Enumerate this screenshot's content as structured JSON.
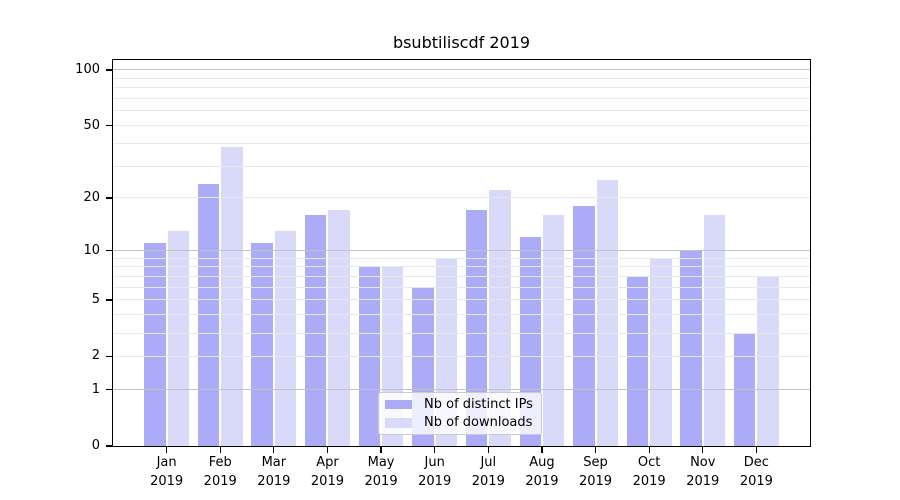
{
  "title": "bsubtiliscdf 2019",
  "chart_data": {
    "type": "bar",
    "title": "bsubtiliscdf 2019",
    "categories": [
      "Jan 2019",
      "Feb 2019",
      "Mar 2019",
      "Apr 2019",
      "May 2019",
      "Jun 2019",
      "Jul 2019",
      "Aug 2019",
      "Sep 2019",
      "Oct 2019",
      "Nov 2019",
      "Dec 2019"
    ],
    "series": [
      {
        "name": "Nb of distinct IPs",
        "color": "#ababf8",
        "values": [
          11,
          24,
          11,
          16,
          8,
          6,
          17,
          12,
          18,
          7,
          10,
          3
        ]
      },
      {
        "name": "Nb of downloads",
        "color": "#d9d9fa",
        "values": [
          13,
          38,
          13,
          17,
          8,
          9,
          22,
          16,
          25,
          9,
          16,
          7
        ]
      }
    ],
    "yscale": "symlog",
    "ylim": [
      0,
      113
    ],
    "yticks": [
      0,
      1,
      2,
      5,
      10,
      20,
      50,
      100
    ],
    "minor_gridline_values": [
      3,
      4,
      6,
      7,
      8,
      9,
      30,
      40,
      60,
      70,
      80,
      90
    ],
    "emphasized_gridline_values": [
      1,
      10,
      100
    ],
    "grid": true,
    "grid_color_major": "#c3c3c3",
    "grid_color_minor": "#e8e8e8",
    "legend_position": "lower center",
    "xlabel": "",
    "ylabel": ""
  }
}
